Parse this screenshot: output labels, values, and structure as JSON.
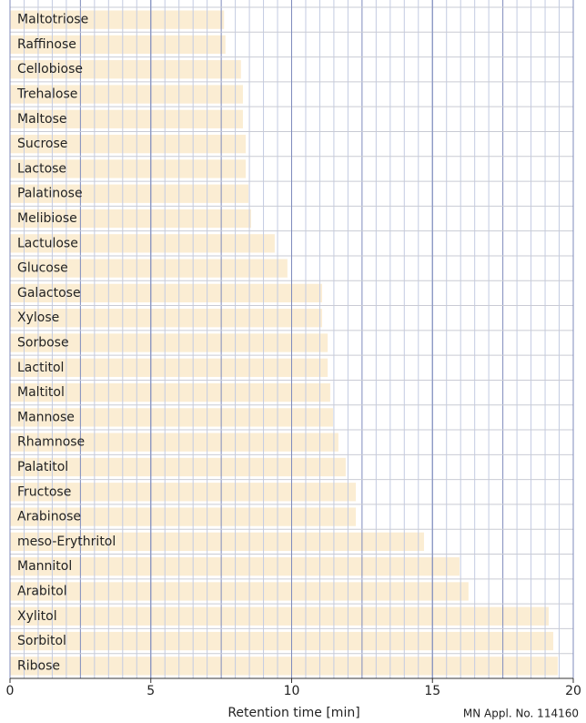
{
  "chart_data": {
    "type": "hbar",
    "x_label": "Retention time [min]",
    "note": "MN Appl. No. 114160",
    "categories": [
      "Maltotriose",
      "Raffinose",
      "Cellobiose",
      "Trehalose",
      "Maltose",
      "Sucrose",
      "Lactose",
      "Palatinose",
      "Melibiose",
      "Lactulose",
      "Glucose",
      "Galactose",
      "Xylose",
      "Sorbose",
      "Lactitol",
      "Maltitol",
      "Mannose",
      "Rhamnose",
      "Palatitol",
      "Fructose",
      "Arabinose",
      "meso-Erythritol",
      "Mannitol",
      "Arabitol",
      "Xylitol",
      "Sorbitol",
      "Ribose"
    ],
    "values": [
      7.6,
      7.65,
      8.2,
      8.27,
      8.27,
      8.37,
      8.37,
      8.47,
      8.56,
      9.4,
      9.85,
      11.08,
      11.08,
      11.28,
      11.28,
      11.37,
      11.47,
      11.66,
      11.92,
      12.28,
      12.28,
      14.7,
      15.96,
      16.28,
      19.13,
      19.29,
      19.45
    ],
    "color": "#fbedd3",
    "xlim": [
      0,
      20
    ],
    "xticks": [
      0,
      5,
      10,
      15,
      20
    ],
    "grid": true
  }
}
